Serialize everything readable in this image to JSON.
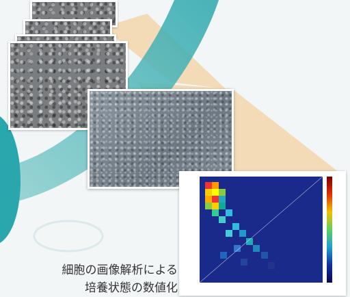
{
  "caption": {
    "line1": "細胞の画像解析による",
    "line2": "培養状態の数値化"
  },
  "colors": {
    "teal": "#2fa6ad",
    "light_teal": "#9fd3d3",
    "orange_band": "#f3d2a3",
    "background": "#f2f6f7"
  }
}
